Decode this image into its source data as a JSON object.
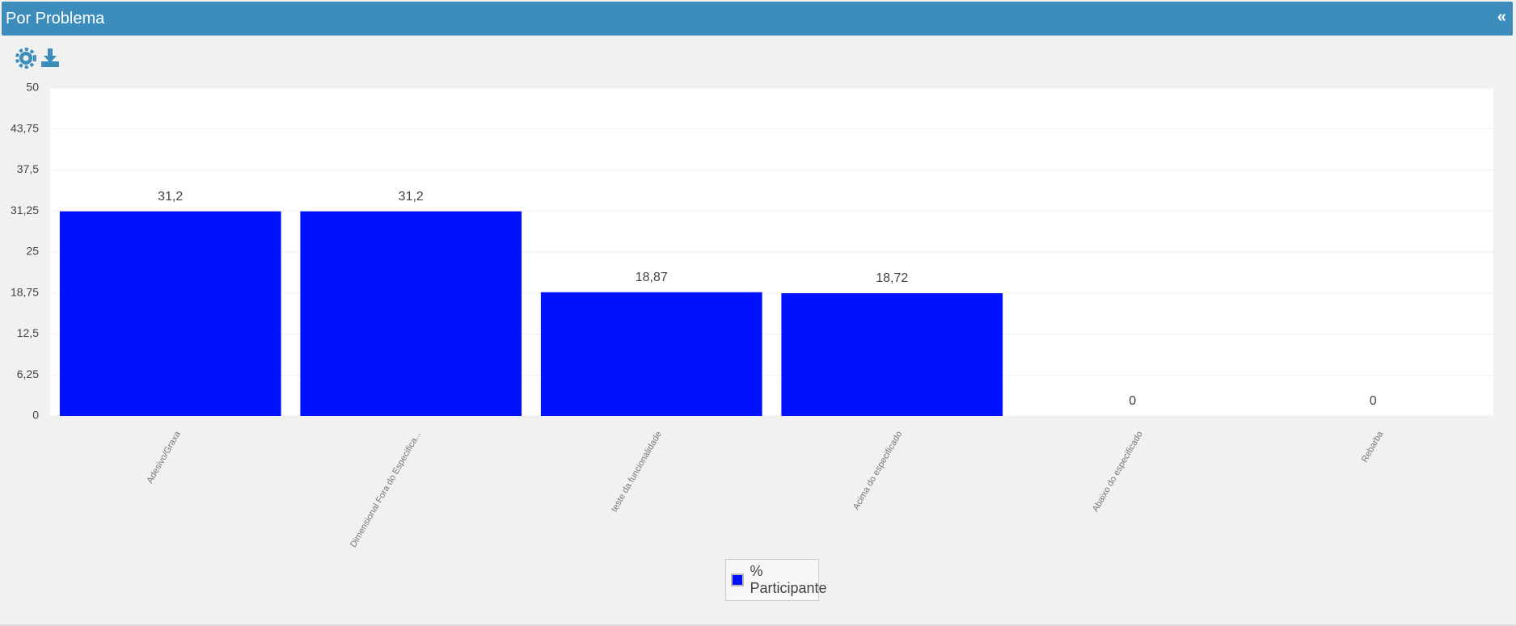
{
  "panel": {
    "title": "Por Problema",
    "collapse": "«"
  },
  "chart_data": {
    "type": "bar",
    "categories": [
      "Adesivo/Graxa",
      "Dimensional Fora do Especifica...",
      "teste da funcionalidade",
      "Acima do especificado",
      "Abaixo do especificado",
      "Rebarba"
    ],
    "series": [
      {
        "name": "% Participante",
        "color": "#0011ff",
        "values": [
          31.2,
          31.2,
          18.87,
          18.72,
          0,
          0
        ],
        "value_labels": [
          "31,2",
          "31,2",
          "18,87",
          "18,72",
          "0",
          "0"
        ]
      }
    ],
    "ylim": [
      0,
      50
    ],
    "yticks": [
      0,
      {
        "value": 6.25,
        "label": "6,25"
      },
      {
        "value": 12.5,
        "label": "12,5"
      },
      {
        "value": 18.75,
        "label": "18,75"
      },
      25,
      {
        "value": 31.25,
        "label": "31,25"
      },
      {
        "value": 37.5,
        "label": "37,5"
      },
      {
        "value": 43.75,
        "label": "43,75"
      },
      50
    ],
    "grid": true,
    "legend": "bottom"
  }
}
